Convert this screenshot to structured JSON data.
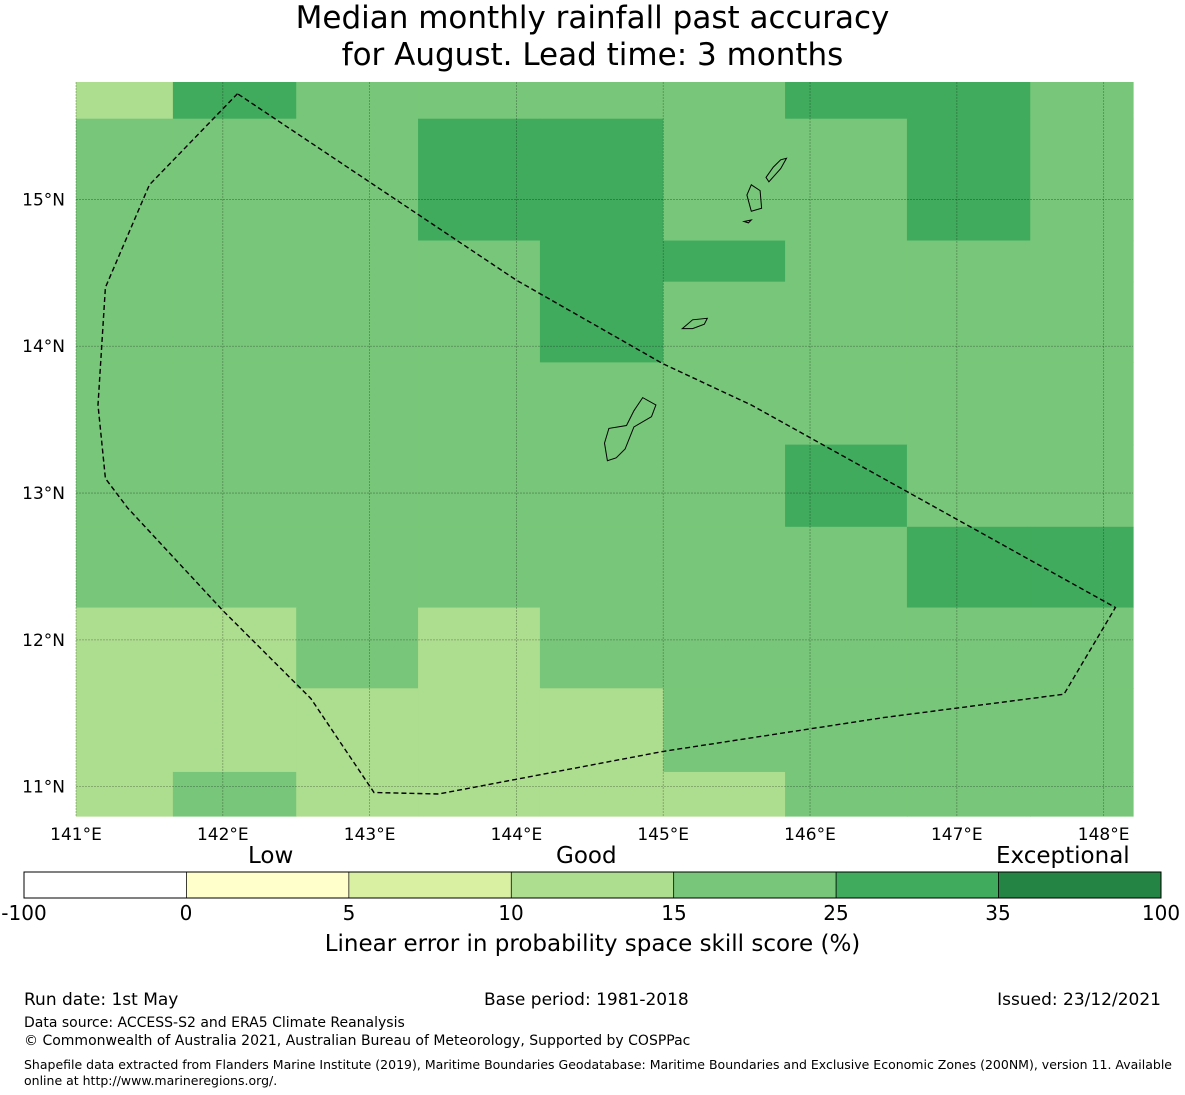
{
  "title": {
    "line1": "Median monthly rainfall past accuracy",
    "line2": "for August. Lead time: 3 months"
  },
  "map": {
    "lon_range": [
      141.0,
      148.2
    ],
    "lat_range": [
      10.8,
      15.8
    ],
    "x_ticks": [
      {
        "value": 141,
        "label": "141°E"
      },
      {
        "value": 142,
        "label": "142°E"
      },
      {
        "value": 143,
        "label": "143°E"
      },
      {
        "value": 144,
        "label": "144°E"
      },
      {
        "value": 145,
        "label": "145°E"
      },
      {
        "value": 146,
        "label": "146°E"
      },
      {
        "value": 147,
        "label": "147°E"
      },
      {
        "value": 148,
        "label": "148°E"
      }
    ],
    "y_ticks": [
      {
        "value": 15,
        "label": "15°N"
      },
      {
        "value": 14,
        "label": "14°N"
      },
      {
        "value": 13,
        "label": "13°N"
      },
      {
        "value": 12,
        "label": "12°N"
      },
      {
        "value": 11,
        "label": "11°N"
      }
    ],
    "cell_lon_edges": [
      141.0,
      141.66,
      142.5,
      143.33,
      144.16,
      145.0,
      145.83,
      146.66,
      147.5,
      148.2
    ],
    "cell_lat_edges": [
      15.8,
      15.55,
      14.72,
      14.44,
      13.89,
      13.33,
      12.77,
      12.22,
      11.67,
      11.1,
      10.8
    ],
    "skill_grid": [
      [
        12,
        30,
        20,
        20,
        20,
        20,
        30,
        30,
        20
      ],
      [
        20,
        20,
        20,
        30,
        30,
        20,
        20,
        30,
        20
      ],
      [
        20,
        20,
        20,
        20,
        30,
        30,
        20,
        20,
        20
      ],
      [
        20,
        20,
        20,
        20,
        30,
        20,
        20,
        20,
        20
      ],
      [
        20,
        20,
        20,
        20,
        20,
        20,
        20,
        20,
        20
      ],
      [
        20,
        20,
        20,
        20,
        20,
        20,
        30,
        20,
        20
      ],
      [
        20,
        20,
        20,
        20,
        20,
        20,
        20,
        30,
        30
      ],
      [
        12,
        12,
        20,
        12,
        20,
        20,
        20,
        20,
        20
      ],
      [
        12,
        12,
        12,
        12,
        12,
        20,
        20,
        20,
        20
      ],
      [
        12,
        20,
        12,
        12,
        12,
        12,
        20,
        20,
        20
      ]
    ],
    "eez_boundary": [
      [
        142.1,
        15.72
      ],
      [
        141.5,
        15.1
      ],
      [
        141.2,
        14.4
      ],
      [
        141.15,
        13.6
      ],
      [
        141.2,
        13.1
      ],
      [
        141.35,
        12.9
      ],
      [
        142.0,
        12.2
      ],
      [
        142.6,
        11.6
      ],
      [
        143.03,
        10.96
      ],
      [
        143.47,
        10.95
      ],
      [
        145.0,
        11.24
      ],
      [
        146.5,
        11.47
      ],
      [
        147.5,
        11.6
      ],
      [
        147.73,
        11.63
      ],
      [
        148.08,
        12.22
      ],
      [
        145.6,
        13.6
      ],
      [
        145.0,
        13.88
      ],
      [
        144.0,
        14.45
      ],
      [
        142.1,
        15.72
      ]
    ],
    "islands": [
      [
        [
          144.62,
          13.22
        ],
        [
          144.6,
          13.34
        ],
        [
          144.63,
          13.44
        ],
        [
          144.75,
          13.46
        ],
        [
          144.8,
          13.56
        ],
        [
          144.86,
          13.65
        ],
        [
          144.95,
          13.6
        ],
        [
          144.92,
          13.52
        ],
        [
          144.8,
          13.45
        ],
        [
          144.74,
          13.3
        ],
        [
          144.68,
          13.24
        ],
        [
          144.62,
          13.22
        ]
      ],
      [
        [
          145.13,
          14.12
        ],
        [
          145.2,
          14.18
        ],
        [
          145.3,
          14.19
        ],
        [
          145.28,
          14.15
        ],
        [
          145.2,
          14.12
        ],
        [
          145.13,
          14.12
        ]
      ],
      [
        [
          145.6,
          14.92
        ],
        [
          145.57,
          15.03
        ],
        [
          145.6,
          15.1
        ],
        [
          145.66,
          15.06
        ],
        [
          145.67,
          14.94
        ],
        [
          145.6,
          14.92
        ]
      ],
      [
        [
          145.7,
          15.15
        ],
        [
          145.75,
          15.22
        ],
        [
          145.8,
          15.27
        ],
        [
          145.84,
          15.28
        ],
        [
          145.8,
          15.21
        ],
        [
          145.72,
          15.12
        ],
        [
          145.7,
          15.15
        ]
      ],
      [
        [
          145.55,
          14.85
        ],
        [
          145.6,
          14.86
        ],
        [
          145.58,
          14.84
        ],
        [
          145.55,
          14.85
        ]
      ]
    ]
  },
  "colorbar": {
    "top_labels": [
      "Low",
      "Good",
      "Exceptional"
    ],
    "bins": [
      {
        "from": -100,
        "to": 0,
        "color": "#ffffff"
      },
      {
        "from": 0,
        "to": 5,
        "color": "#ffffcc"
      },
      {
        "from": 5,
        "to": 10,
        "color": "#d9f0a3"
      },
      {
        "from": 10,
        "to": 15,
        "color": "#addd8e"
      },
      {
        "from": 15,
        "to": 25,
        "color": "#78c679"
      },
      {
        "from": 25,
        "to": 35,
        "color": "#41ab5d"
      },
      {
        "from": 35,
        "to": 100,
        "color": "#238443"
      }
    ],
    "tick_labels": [
      "-100",
      "0",
      "5",
      "10",
      "15",
      "25",
      "35",
      "100"
    ],
    "label": "Linear error in probability space skill score (%)"
  },
  "footer": {
    "run_date": "Run date: 1st May",
    "base_period": "Base period: 1981-2018",
    "issued": "Issued: 23/12/2021",
    "data_source": "Data source: ACCESS-S2 and ERA5 Climate Reanalysis",
    "copyright": "© Commonwealth of Australia 2021, Australian Bureau of Meteorology, Supported by COSPPac",
    "shapefile": "Shapefile data extracted from Flanders Marine Institute (2019), Maritime Boundaries Geodatabase: Maritime Boundaries and Exclusive Economic Zones (200NM), version 11. Available online at http://www.marineregions.org/."
  }
}
